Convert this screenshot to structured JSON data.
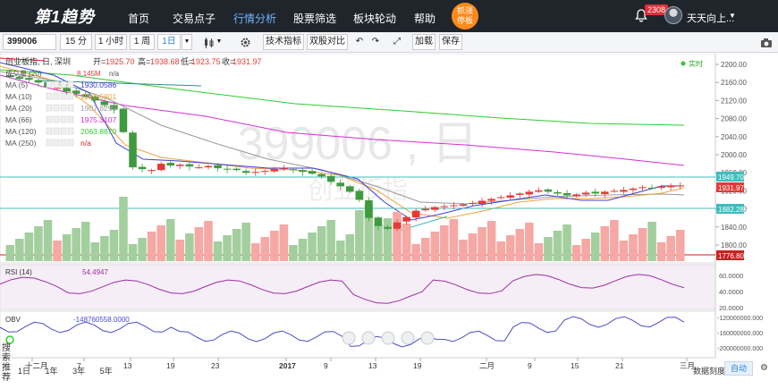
{
  "app": {
    "logo": "第1趋势",
    "nav": [
      {
        "label": "首页"
      },
      {
        "label": "交易点子"
      },
      {
        "label": "行情分析",
        "active": true
      },
      {
        "label": "股票筛选"
      },
      {
        "label": "板块轮动"
      },
      {
        "label": "帮助"
      }
    ],
    "promo_badge": "抓涨\n停板",
    "message_count": "2308",
    "username": "天天向上..."
  },
  "toolbar": {
    "symbol": "399006",
    "periods": [
      "15 分",
      "1 小时",
      "1 周",
      "1日"
    ],
    "active_period": "1日",
    "indicators_label": "技术指标",
    "compare_label": "双股对比",
    "add_label": "加载",
    "save_label": "保存"
  },
  "chart": {
    "header": "创业板指, 日, 深圳",
    "ohlc": {
      "open_label": "开=",
      "open": "1925.70",
      "high_label": "高=",
      "high": "1938.68",
      "low_label": "低=",
      "low": "1923.75",
      "close_label": "收=",
      "close": "1931.97"
    },
    "volume_legend": {
      "label": "成交量 (20)",
      "value": "8.145M",
      "na": "n/a"
    },
    "ma_legend": [
      {
        "label": "MA (5)",
        "value": "1930.0586",
        "color": "#3d3ddb"
      },
      {
        "label": "MA (10)",
        "value": "1926.6801",
        "color": "#f2a13c"
      },
      {
        "label": "MA (20)",
        "value": "1907.6299",
        "color": "#999999"
      },
      {
        "label": "MA (66)",
        "value": "1975.3107",
        "color": "#d62ed6"
      },
      {
        "label": "MA (120)",
        "value": "2063.8870",
        "color": "#2fcc2f"
      },
      {
        "label": "MA (250)",
        "value": "n/a",
        "color": "#e02020"
      }
    ],
    "realtime_label": "实时",
    "watermark_code": "399006 , 日",
    "watermark_name": "创业板指",
    "price_ticks": [
      "2200.00",
      "2160.00",
      "2120.00",
      "2080.00",
      "2040.00",
      "2000.00",
      "1960.00",
      "1920.00",
      "1880.00",
      "1840.00",
      "1800.00"
    ],
    "price_tags": [
      {
        "text": "1949.70",
        "kind": "line"
      },
      {
        "text": "1931.97",
        "kind": "close"
      },
      {
        "text": "1882.28",
        "kind": "line"
      },
      {
        "text": "1776.80",
        "kind": "low"
      }
    ],
    "rsi_label": "RSI (14)",
    "rsi_value": "54.4947",
    "rsi_ticks": [
      "60.0000",
      "40.0000",
      "20.0000"
    ],
    "obv_label": "OBV",
    "obv_value": "-148760558.0000",
    "obv_ticks": [
      "-120000000.000",
      "-160000000.000",
      "-200000000.000"
    ],
    "x_labels": [
      "十二月",
      "7",
      "13",
      "19",
      "23",
      "2017",
      "9",
      "13",
      "19",
      "二月",
      "9",
      "15",
      "21",
      "三月"
    ],
    "side_search": "搜索推荐",
    "bottom_tabs": [
      "1日",
      "1年",
      "3年",
      "5年"
    ],
    "bottom_right": "数据刻度",
    "auto_label": "自动",
    "colors": {
      "up": "#e33b36",
      "down": "#3f9a3f",
      "vol_up": "#f5a8a4",
      "vol_down": "#a3cf9e",
      "rsi": "#9b2fa4",
      "obv": "#4c4cc8",
      "price_line": "#3fbcbc",
      "low_line": "#cc2020"
    }
  }
}
